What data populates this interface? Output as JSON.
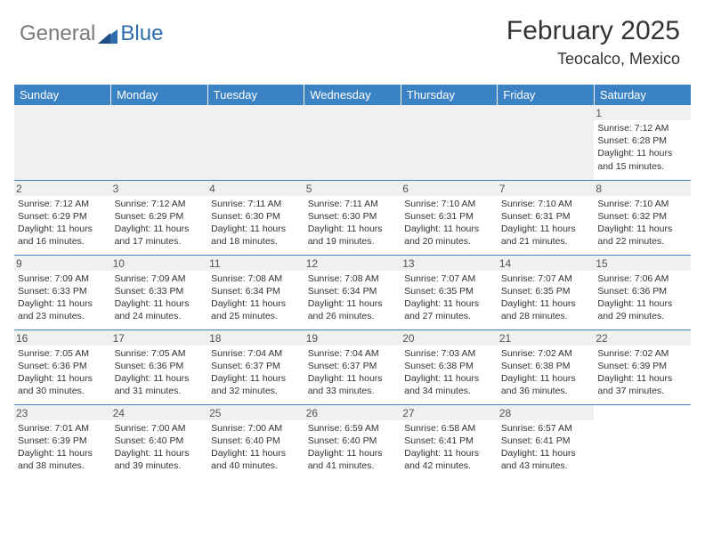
{
  "logo": {
    "text1": "General",
    "text2": "Blue"
  },
  "title": "February 2025",
  "location": "Teocalco, Mexico",
  "colors": {
    "header_bg": "#3b82c4",
    "header_text": "#ffffff",
    "daynum_bg": "#f0f0f0",
    "border": "#3b82c4",
    "text": "#333333",
    "logo_gray": "#7a7a7a",
    "logo_blue": "#2f6db0"
  },
  "day_headers": [
    "Sunday",
    "Monday",
    "Tuesday",
    "Wednesday",
    "Thursday",
    "Friday",
    "Saturday"
  ],
  "weeks": [
    [
      null,
      null,
      null,
      null,
      null,
      null,
      {
        "n": "1",
        "sr": "Sunrise: 7:12 AM",
        "ss": "Sunset: 6:28 PM",
        "d1": "Daylight: 11 hours",
        "d2": "and 15 minutes."
      }
    ],
    [
      {
        "n": "2",
        "sr": "Sunrise: 7:12 AM",
        "ss": "Sunset: 6:29 PM",
        "d1": "Daylight: 11 hours",
        "d2": "and 16 minutes."
      },
      {
        "n": "3",
        "sr": "Sunrise: 7:12 AM",
        "ss": "Sunset: 6:29 PM",
        "d1": "Daylight: 11 hours",
        "d2": "and 17 minutes."
      },
      {
        "n": "4",
        "sr": "Sunrise: 7:11 AM",
        "ss": "Sunset: 6:30 PM",
        "d1": "Daylight: 11 hours",
        "d2": "and 18 minutes."
      },
      {
        "n": "5",
        "sr": "Sunrise: 7:11 AM",
        "ss": "Sunset: 6:30 PM",
        "d1": "Daylight: 11 hours",
        "d2": "and 19 minutes."
      },
      {
        "n": "6",
        "sr": "Sunrise: 7:10 AM",
        "ss": "Sunset: 6:31 PM",
        "d1": "Daylight: 11 hours",
        "d2": "and 20 minutes."
      },
      {
        "n": "7",
        "sr": "Sunrise: 7:10 AM",
        "ss": "Sunset: 6:31 PM",
        "d1": "Daylight: 11 hours",
        "d2": "and 21 minutes."
      },
      {
        "n": "8",
        "sr": "Sunrise: 7:10 AM",
        "ss": "Sunset: 6:32 PM",
        "d1": "Daylight: 11 hours",
        "d2": "and 22 minutes."
      }
    ],
    [
      {
        "n": "9",
        "sr": "Sunrise: 7:09 AM",
        "ss": "Sunset: 6:33 PM",
        "d1": "Daylight: 11 hours",
        "d2": "and 23 minutes."
      },
      {
        "n": "10",
        "sr": "Sunrise: 7:09 AM",
        "ss": "Sunset: 6:33 PM",
        "d1": "Daylight: 11 hours",
        "d2": "and 24 minutes."
      },
      {
        "n": "11",
        "sr": "Sunrise: 7:08 AM",
        "ss": "Sunset: 6:34 PM",
        "d1": "Daylight: 11 hours",
        "d2": "and 25 minutes."
      },
      {
        "n": "12",
        "sr": "Sunrise: 7:08 AM",
        "ss": "Sunset: 6:34 PM",
        "d1": "Daylight: 11 hours",
        "d2": "and 26 minutes."
      },
      {
        "n": "13",
        "sr": "Sunrise: 7:07 AM",
        "ss": "Sunset: 6:35 PM",
        "d1": "Daylight: 11 hours",
        "d2": "and 27 minutes."
      },
      {
        "n": "14",
        "sr": "Sunrise: 7:07 AM",
        "ss": "Sunset: 6:35 PM",
        "d1": "Daylight: 11 hours",
        "d2": "and 28 minutes."
      },
      {
        "n": "15",
        "sr": "Sunrise: 7:06 AM",
        "ss": "Sunset: 6:36 PM",
        "d1": "Daylight: 11 hours",
        "d2": "and 29 minutes."
      }
    ],
    [
      {
        "n": "16",
        "sr": "Sunrise: 7:05 AM",
        "ss": "Sunset: 6:36 PM",
        "d1": "Daylight: 11 hours",
        "d2": "and 30 minutes."
      },
      {
        "n": "17",
        "sr": "Sunrise: 7:05 AM",
        "ss": "Sunset: 6:36 PM",
        "d1": "Daylight: 11 hours",
        "d2": "and 31 minutes."
      },
      {
        "n": "18",
        "sr": "Sunrise: 7:04 AM",
        "ss": "Sunset: 6:37 PM",
        "d1": "Daylight: 11 hours",
        "d2": "and 32 minutes."
      },
      {
        "n": "19",
        "sr": "Sunrise: 7:04 AM",
        "ss": "Sunset: 6:37 PM",
        "d1": "Daylight: 11 hours",
        "d2": "and 33 minutes."
      },
      {
        "n": "20",
        "sr": "Sunrise: 7:03 AM",
        "ss": "Sunset: 6:38 PM",
        "d1": "Daylight: 11 hours",
        "d2": "and 34 minutes."
      },
      {
        "n": "21",
        "sr": "Sunrise: 7:02 AM",
        "ss": "Sunset: 6:38 PM",
        "d1": "Daylight: 11 hours",
        "d2": "and 36 minutes."
      },
      {
        "n": "22",
        "sr": "Sunrise: 7:02 AM",
        "ss": "Sunset: 6:39 PM",
        "d1": "Daylight: 11 hours",
        "d2": "and 37 minutes."
      }
    ],
    [
      {
        "n": "23",
        "sr": "Sunrise: 7:01 AM",
        "ss": "Sunset: 6:39 PM",
        "d1": "Daylight: 11 hours",
        "d2": "and 38 minutes."
      },
      {
        "n": "24",
        "sr": "Sunrise: 7:00 AM",
        "ss": "Sunset: 6:40 PM",
        "d1": "Daylight: 11 hours",
        "d2": "and 39 minutes."
      },
      {
        "n": "25",
        "sr": "Sunrise: 7:00 AM",
        "ss": "Sunset: 6:40 PM",
        "d1": "Daylight: 11 hours",
        "d2": "and 40 minutes."
      },
      {
        "n": "26",
        "sr": "Sunrise: 6:59 AM",
        "ss": "Sunset: 6:40 PM",
        "d1": "Daylight: 11 hours",
        "d2": "and 41 minutes."
      },
      {
        "n": "27",
        "sr": "Sunrise: 6:58 AM",
        "ss": "Sunset: 6:41 PM",
        "d1": "Daylight: 11 hours",
        "d2": "and 42 minutes."
      },
      {
        "n": "28",
        "sr": "Sunrise: 6:57 AM",
        "ss": "Sunset: 6:41 PM",
        "d1": "Daylight: 11 hours",
        "d2": "and 43 minutes."
      },
      null
    ]
  ]
}
